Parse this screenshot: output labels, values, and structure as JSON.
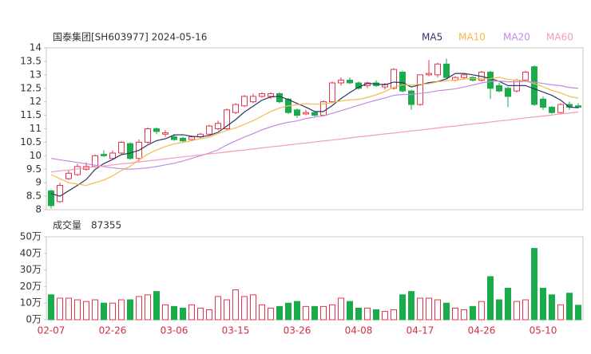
{
  "chart_data": {
    "type": "candlestick",
    "title": "国泰集团[SH603977] 2024-05-16",
    "categories": [
      "02-07",
      null,
      null,
      null,
      null,
      null,
      null,
      "02-26",
      null,
      null,
      null,
      null,
      null,
      null,
      "03-06",
      null,
      null,
      null,
      null,
      null,
      null,
      "03-15",
      null,
      null,
      null,
      null,
      null,
      null,
      "03-26",
      null,
      null,
      null,
      null,
      null,
      null,
      "04-08",
      null,
      null,
      null,
      null,
      null,
      null,
      "04-17",
      null,
      null,
      null,
      null,
      null,
      null,
      "04-26",
      null,
      null,
      null,
      null,
      null,
      null,
      "05-10",
      null,
      null,
      null,
      null
    ],
    "open": [
      8.7,
      8.3,
      9.15,
      9.3,
      9.5,
      9.6,
      10.05,
      9.9,
      10.1,
      10.45,
      9.9,
      10.5,
      11.0,
      10.8,
      10.7,
      10.65,
      10.6,
      10.7,
      10.8,
      11.0,
      11.0,
      11.6,
      11.85,
      12.0,
      12.2,
      12.2,
      12.3,
      12.1,
      11.7,
      11.55,
      11.6,
      11.5,
      12.0,
      12.7,
      12.8,
      12.7,
      12.6,
      12.7,
      12.55,
      12.5,
      13.1,
      12.4,
      11.9,
      13.0,
      13.0,
      13.4,
      12.8,
      12.9,
      12.9,
      12.8,
      13.1,
      12.6,
      12.5,
      12.4,
      12.8,
      13.3,
      12.1,
      11.8,
      11.6,
      11.9,
      11.85
    ],
    "high": [
      8.75,
      9.0,
      9.45,
      9.7,
      9.75,
      10.05,
      10.2,
      10.2,
      10.55,
      10.5,
      10.6,
      11.05,
      11.05,
      10.95,
      10.8,
      10.7,
      10.75,
      10.85,
      11.15,
      11.3,
      11.75,
      11.95,
      12.25,
      12.3,
      12.35,
      12.35,
      12.35,
      12.15,
      11.75,
      11.7,
      11.65,
      12.05,
      12.75,
      12.9,
      12.9,
      12.75,
      12.75,
      12.8,
      12.7,
      13.25,
      13.15,
      12.45,
      13.0,
      13.55,
      13.45,
      13.6,
      12.95,
      13.05,
      12.95,
      13.15,
      13.15,
      12.7,
      12.55,
      12.85,
      13.15,
      13.35,
      12.2,
      11.85,
      11.95,
      12.0,
      11.95
    ],
    "low": [
      8.05,
      8.25,
      9.1,
      9.25,
      9.45,
      9.55,
      9.95,
      9.85,
      10.05,
      9.85,
      9.8,
      10.45,
      10.8,
      10.7,
      10.55,
      10.5,
      10.55,
      10.65,
      10.75,
      10.95,
      10.95,
      11.55,
      11.8,
      11.95,
      12.15,
      12.1,
      11.95,
      11.55,
      11.4,
      11.5,
      11.45,
      11.45,
      11.95,
      12.6,
      12.65,
      12.45,
      12.5,
      12.55,
      12.45,
      12.45,
      12.35,
      11.7,
      11.85,
      12.95,
      12.9,
      12.85,
      12.75,
      12.85,
      12.75,
      12.75,
      12.1,
      12.35,
      11.8,
      12.35,
      12.75,
      11.85,
      11.7,
      11.55,
      11.55,
      11.7,
      11.75
    ],
    "close": [
      8.15,
      8.9,
      9.35,
      9.6,
      9.6,
      10.0,
      10.0,
      10.1,
      10.5,
      9.9,
      10.5,
      11.0,
      10.9,
      10.85,
      10.6,
      10.55,
      10.7,
      10.8,
      11.1,
      11.2,
      11.7,
      11.9,
      12.2,
      12.2,
      12.3,
      12.3,
      12.0,
      11.6,
      11.5,
      11.6,
      11.5,
      12.0,
      12.7,
      12.8,
      12.7,
      12.5,
      12.7,
      12.6,
      12.65,
      13.2,
      12.4,
      11.9,
      13.0,
      13.05,
      13.4,
      12.9,
      12.9,
      13.0,
      12.8,
      13.1,
      12.5,
      12.4,
      12.2,
      12.8,
      13.1,
      11.9,
      11.8,
      11.6,
      11.9,
      11.8,
      11.8
    ],
    "up_color": "#e8334a",
    "down_color": "#1aab4b",
    "ylim": [
      8,
      14
    ],
    "yticks": [
      8,
      8.5,
      9,
      9.5,
      10,
      10.5,
      11,
      11.5,
      12,
      12.5,
      13,
      13.5,
      14
    ],
    "ma": [
      {
        "name": "MA5",
        "color": "#2f3566",
        "values": [
          8.6,
          8.5,
          8.7,
          8.9,
          9.12,
          9.49,
          9.71,
          9.86,
          10.04,
          10.1,
          10.2,
          10.4,
          10.56,
          10.63,
          10.77,
          10.78,
          10.72,
          10.7,
          10.75,
          10.87,
          11.1,
          11.34,
          11.62,
          11.84,
          12.06,
          12.18,
          12.2,
          12.08,
          11.94,
          11.8,
          11.64,
          11.64,
          11.86,
          12.12,
          12.34,
          12.54,
          12.68,
          12.66,
          12.63,
          12.73,
          12.71,
          12.55,
          12.63,
          12.71,
          12.75,
          12.85,
          13.05,
          13.05,
          13.0,
          12.94,
          12.86,
          12.76,
          12.6,
          12.6,
          12.6,
          12.48,
          12.36,
          12.24,
          12.06,
          11.8,
          11.78
        ]
      },
      {
        "name": "MA10",
        "color": "#f5b94a",
        "values": [
          9.3,
          9.15,
          9.0,
          8.95,
          8.9,
          9.0,
          9.1,
          9.25,
          9.45,
          9.61,
          9.85,
          10.06,
          10.21,
          10.34,
          10.44,
          10.49,
          10.56,
          10.63,
          10.69,
          10.82,
          10.94,
          11.03,
          11.16,
          11.3,
          11.47,
          11.64,
          11.77,
          11.85,
          11.89,
          11.93,
          11.91,
          11.92,
          11.97,
          12.03,
          12.07,
          12.09,
          12.16,
          12.26,
          12.38,
          12.54,
          12.63,
          12.62,
          12.65,
          12.67,
          12.74,
          12.78,
          12.8,
          12.84,
          12.86,
          12.85,
          12.86,
          12.91,
          12.83,
          12.8,
          12.77,
          12.67,
          12.56,
          12.42,
          12.33,
          12.2,
          12.13
        ]
      },
      {
        "name": "MA20",
        "color": "#c28be3",
        "values": [
          9.9,
          9.85,
          9.8,
          9.75,
          9.7,
          9.65,
          9.6,
          9.55,
          9.52,
          9.5,
          9.52,
          9.55,
          9.6,
          9.66,
          9.72,
          9.8,
          9.9,
          10.0,
          10.1,
          10.22,
          10.4,
          10.55,
          10.69,
          10.82,
          10.96,
          11.07,
          11.17,
          11.24,
          11.29,
          11.38,
          11.43,
          11.48,
          11.57,
          11.67,
          11.77,
          11.87,
          11.97,
          12.06,
          12.14,
          12.24,
          12.27,
          12.27,
          12.31,
          12.35,
          12.41,
          12.44,
          12.48,
          12.55,
          12.62,
          12.7,
          12.75,
          12.77,
          12.74,
          12.74,
          12.76,
          12.73,
          12.68,
          12.63,
          12.6,
          12.53,
          12.5
        ]
      },
      {
        "name": "MA60",
        "color": "#f29bbd",
        "values": [
          9.4,
          9.44,
          9.47,
          9.51,
          9.55,
          9.59,
          9.62,
          9.66,
          9.7,
          9.73,
          9.77,
          9.81,
          9.84,
          9.88,
          9.92,
          9.96,
          9.99,
          10.03,
          10.07,
          10.1,
          10.14,
          10.18,
          10.21,
          10.25,
          10.29,
          10.33,
          10.36,
          10.4,
          10.44,
          10.47,
          10.51,
          10.55,
          10.58,
          10.62,
          10.66,
          10.7,
          10.73,
          10.77,
          10.81,
          10.84,
          10.88,
          10.92,
          10.95,
          10.99,
          11.03,
          11.07,
          11.1,
          11.14,
          11.18,
          11.21,
          11.25,
          11.29,
          11.32,
          11.36,
          11.4,
          11.44,
          11.47,
          11.51,
          11.55,
          11.58,
          11.62
        ]
      }
    ],
    "volume_title": "成交量",
    "volume": [
      150000,
      130000,
      130000,
      120000,
      110000,
      120000,
      100000,
      100000,
      120000,
      120000,
      140000,
      150000,
      170000,
      90000,
      80000,
      70000,
      90000,
      70000,
      60000,
      140000,
      120000,
      180000,
      140000,
      150000,
      90000,
      70000,
      80000,
      100000,
      110000,
      80000,
      80000,
      80000,
      90000,
      130000,
      110000,
      70000,
      70000,
      60000,
      50000,
      60000,
      150000,
      170000,
      130000,
      130000,
      120000,
      100000,
      70000,
      60000,
      80000,
      110000,
      260000,
      120000,
      190000,
      110000,
      120000,
      430000,
      190000,
      150000,
      90000,
      160000,
      87355
    ],
    "volume_ylim": [
      0,
      500000
    ],
    "volume_yticks": [
      {
        "value": 0,
        "label": "0万"
      },
      {
        "value": 100000,
        "label": "10万"
      },
      {
        "value": 200000,
        "label": "20万"
      },
      {
        "value": 300000,
        "label": "30万"
      },
      {
        "value": 400000,
        "label": "40万"
      },
      {
        "value": 500000,
        "label": "50万"
      }
    ]
  }
}
